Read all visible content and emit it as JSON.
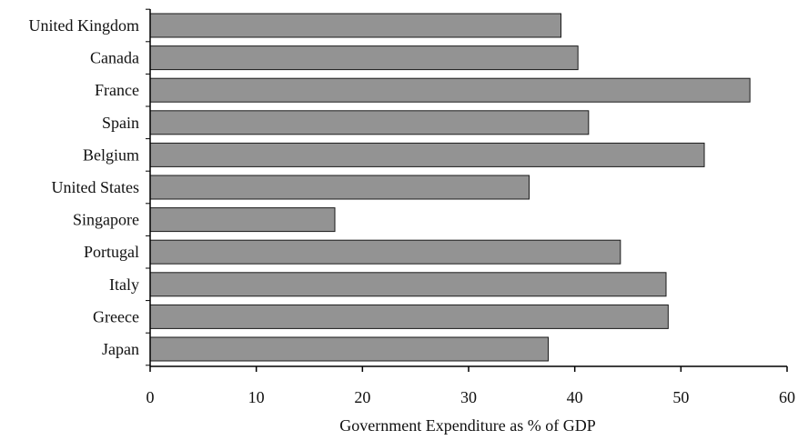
{
  "chart_data": {
    "type": "bar",
    "orientation": "horizontal",
    "categories": [
      "United Kingdom",
      "Canada",
      "France",
      "Spain",
      "Belgium",
      "United States",
      "Singapore",
      "Portugal",
      "Italy",
      "Greece",
      "Japan"
    ],
    "values": [
      38.7,
      40.3,
      56.5,
      41.3,
      52.2,
      35.7,
      17.4,
      44.3,
      48.6,
      48.8,
      37.5
    ],
    "title": "",
    "xlabel": "Government Expenditure as % of GDP",
    "ylabel": "",
    "xlim": [
      0,
      60
    ],
    "xticks": [
      0,
      10,
      20,
      30,
      40,
      50,
      60
    ],
    "grid": false,
    "bar_color": "#939393",
    "bar_edge_color": "#1a1a1a",
    "axis_color": "#000000"
  }
}
